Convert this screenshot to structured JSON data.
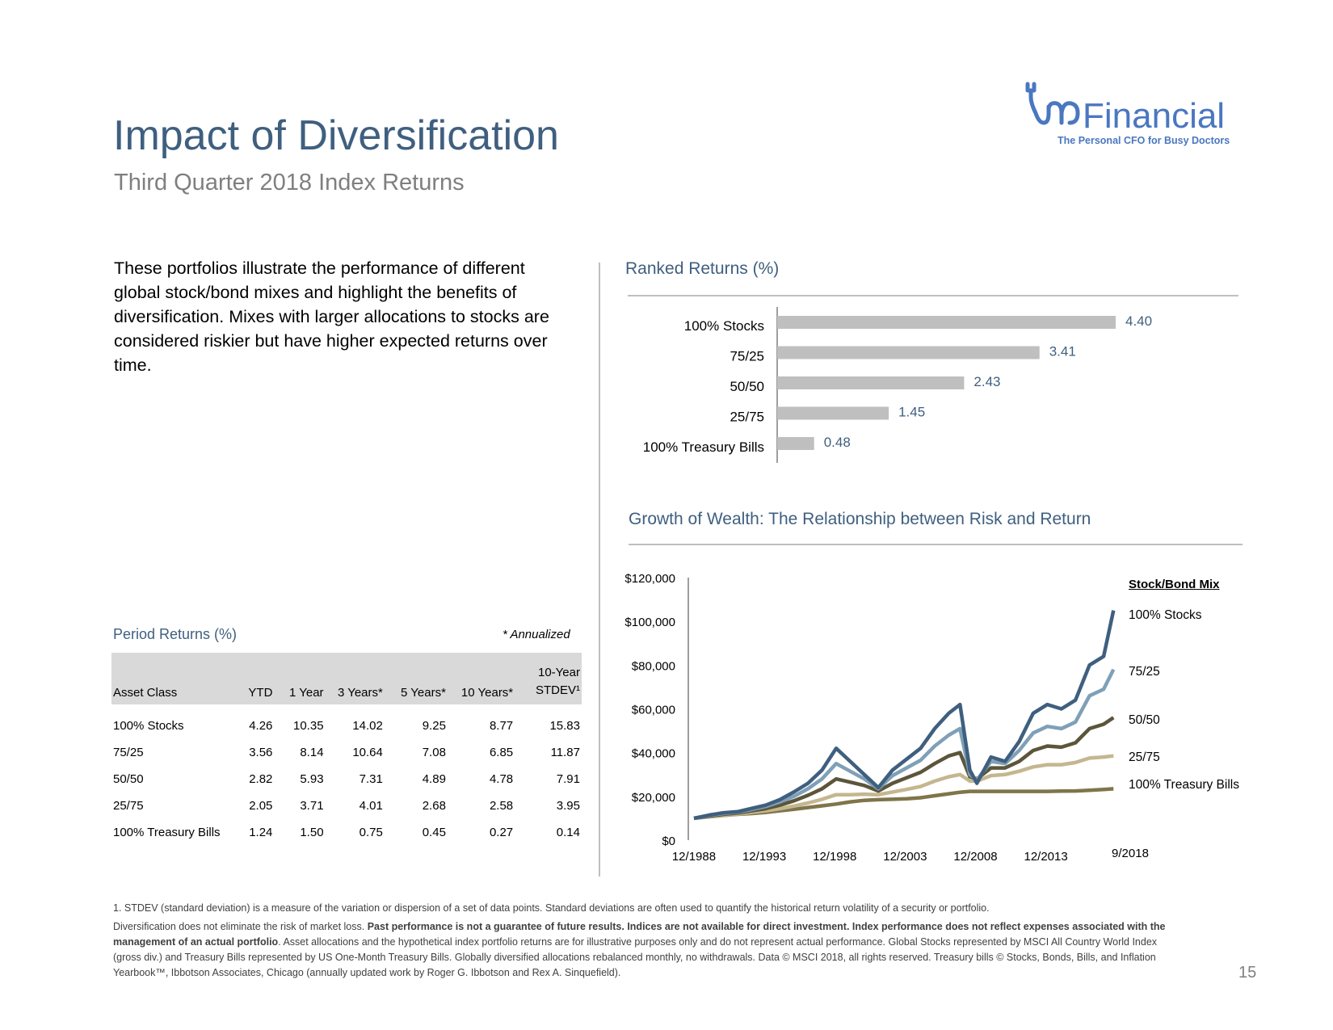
{
  "header": {
    "title": "Impact of Diversification",
    "subtitle": "Third Quarter 2018 Index Returns"
  },
  "logo": {
    "wordmark": "Financial",
    "tagline": "The Personal CFO for Busy Doctors",
    "color": "#4a77c0"
  },
  "intro": {
    "text": "These portfolios illustrate the performance of different global stock/bond mixes and highlight the benefits of diversification. Mixes with larger allocations to stocks are considered riskier but have higher expected returns over time."
  },
  "period_returns": {
    "title": "Period Returns (%)",
    "note": "* Annualized",
    "headers": [
      "Asset Class",
      "YTD",
      "1 Year",
      "3 Years*",
      "5 Years*",
      "10 Years*",
      "10-Year STDEV¹"
    ],
    "rows": [
      [
        "100% Stocks",
        "4.26",
        "10.35",
        "14.02",
        "9.25",
        "8.77",
        "15.83"
      ],
      [
        "75/25",
        "3.56",
        "8.14",
        "10.64",
        "7.08",
        "6.85",
        "11.87"
      ],
      [
        "50/50",
        "2.82",
        "5.93",
        "7.31",
        "4.89",
        "4.78",
        "7.91"
      ],
      [
        "25/75",
        "2.05",
        "3.71",
        "4.01",
        "2.68",
        "2.58",
        "3.95"
      ],
      [
        "100% Treasury Bills",
        "1.24",
        "1.50",
        "0.75",
        "0.45",
        "0.27",
        "0.14"
      ]
    ]
  },
  "chart_data": [
    {
      "type": "bar",
      "orientation": "horizontal",
      "title": "Ranked Returns (%)",
      "categories": [
        "100% Stocks",
        "75/25",
        "50/50",
        "25/75",
        "100% Treasury Bills"
      ],
      "values": [
        4.4,
        3.41,
        2.43,
        1.45,
        0.48
      ],
      "value_labels": [
        "4.40",
        "3.41",
        "2.43",
        "1.45",
        "0.48"
      ],
      "xlim": [
        0,
        4.4
      ],
      "grid": false,
      "bar_color": "#bfbfbf",
      "label_color": "#3f5f7f"
    },
    {
      "type": "line",
      "title": "Growth of Wealth: The Relationship between Risk and Return",
      "legend_title": "Stock/Bond Mix",
      "legend_placement": "right",
      "ylim": [
        0,
        120000
      ],
      "yticks": [
        "$120,000",
        "$100,000",
        "$80,000",
        "$60,000",
        "$40,000",
        "$20,000",
        "$0"
      ],
      "xticks": [
        "12/1988",
        "12/1993",
        "12/1998",
        "12/2003",
        "12/2008",
        "12/2013",
        "9/2018"
      ],
      "x": [
        1988.9,
        1990,
        1991,
        1992,
        1993,
        1994,
        1995,
        1996,
        1997,
        1998,
        1999,
        2000,
        2001,
        2002,
        2003,
        2004,
        2005,
        2006,
        2007,
        2007.8,
        2008.5,
        2009,
        2010,
        2011,
        2012,
        2013,
        2014,
        2015,
        2016,
        2017,
        2018,
        2018.7
      ],
      "series": [
        {
          "name": "100% Stocks",
          "color": "#3f5f7f",
          "values": [
            10000,
            11500,
            12500,
            13000,
            14500,
            16000,
            18500,
            22000,
            26000,
            32000,
            42000,
            36000,
            30000,
            24000,
            32000,
            37000,
            42000,
            51000,
            58000,
            62000,
            32000,
            26000,
            38000,
            36000,
            45000,
            58000,
            62000,
            60000,
            64000,
            80000,
            84000,
            105000
          ]
        },
        {
          "name": "75/25",
          "color": "#7fa0b7",
          "values": [
            10000,
            11300,
            12200,
            12800,
            14000,
            15400,
            17500,
            20000,
            23500,
            28000,
            35000,
            31500,
            28000,
            23500,
            29500,
            33000,
            36500,
            43000,
            48000,
            51000,
            30000,
            27500,
            36000,
            35000,
            41000,
            49000,
            52000,
            51000,
            54000,
            66000,
            69000,
            78000
          ]
        },
        {
          "name": "50/50",
          "color": "#5c553a",
          "values": [
            10000,
            11000,
            11800,
            12400,
            13400,
            14400,
            16000,
            18000,
            20500,
            23500,
            28000,
            26500,
            25000,
            22500,
            26000,
            28500,
            31000,
            35000,
            38500,
            40000,
            29000,
            28000,
            33000,
            33000,
            36000,
            41000,
            43000,
            42500,
            44500,
            51000,
            53000,
            56000
          ]
        },
        {
          "name": "25/75",
          "color": "#c4b78f",
          "values": [
            10000,
            10800,
            11400,
            11900,
            12700,
            13400,
            14400,
            15600,
            17000,
            18700,
            20800,
            20800,
            21000,
            20800,
            22000,
            23200,
            24500,
            27000,
            29000,
            30000,
            27000,
            27000,
            29500,
            30000,
            31500,
            33500,
            34500,
            34500,
            35500,
            37500,
            38000,
            38500
          ]
        },
        {
          "name": "100% Treasury Bills",
          "color": "#7f754a",
          "values": [
            10000,
            10700,
            11300,
            11800,
            12200,
            12700,
            13400,
            14100,
            14900,
            15700,
            16500,
            17500,
            18200,
            18500,
            18700,
            18900,
            19400,
            20300,
            21200,
            21900,
            22300,
            22300,
            22300,
            22300,
            22300,
            22300,
            22300,
            22400,
            22500,
            22800,
            23200,
            23500
          ]
        }
      ]
    }
  ],
  "footnotes": {
    "note1": "1. STDEV (standard deviation) is a measure of the variation or dispersion of a set of data points. Standard deviations are often used to quantify the historical return volatility of a security or portfolio.",
    "p_start": "Diversification does not eliminate the risk of market loss. ",
    "p_bold": "Past performance is not a guarantee of future results. Indices are not available for direct investment. Index performance does not reflect expenses associated with the management of an actual portfolio",
    "p_end": ". Asset allocations and the hypothetical index portfolio returns are for illustrative purposes only and do not represent actual performance. Global Stocks represented by MSCI All Country World Index (gross div.) and Treasury Bills represented by US One-Month Treasury Bills. Globally diversified allocations rebalanced monthly, no withdrawals. Data © MSCI 2018, all rights reserved. Treasury bills © Stocks, Bonds, Bills, and Inflation Yearbook™, Ibbotson Associates, Chicago (annually updated work by Roger G. Ibbotson and Rex A. Sinquefield)."
  },
  "page_number": "15"
}
